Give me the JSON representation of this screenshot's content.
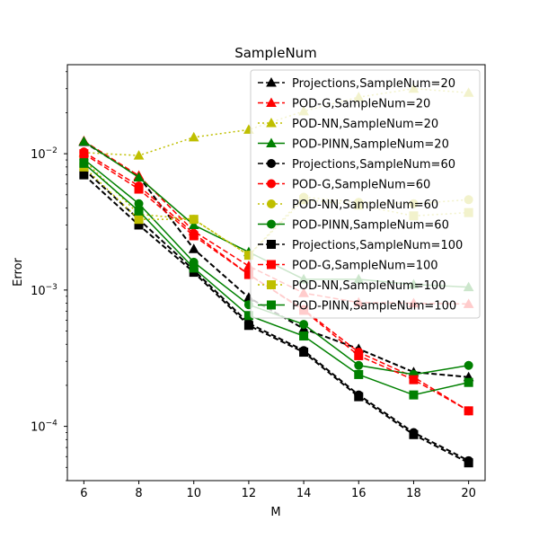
{
  "chart_data": {
    "type": "line",
    "title": "SampleNum",
    "xlabel": "M",
    "ylabel": "Error",
    "yscale": "log",
    "xlim": [
      5.4,
      20.6
    ],
    "ylim": [
      4e-05,
      0.045
    ],
    "x": [
      6,
      8,
      10,
      12,
      14,
      16,
      18,
      20
    ],
    "x_ticks": [
      6,
      8,
      10,
      12,
      14,
      16,
      18,
      20
    ],
    "y_ticks": [
      {
        "value": 0.0001,
        "base": "10",
        "exp": "−4"
      },
      {
        "value": 0.001,
        "base": "10",
        "exp": "−3"
      },
      {
        "value": 0.01,
        "base": "10",
        "exp": "−2"
      }
    ],
    "legend_position": "top-right",
    "grid": false,
    "series": [
      {
        "name": "Projections,SampleNum=20",
        "color": "#000000",
        "dash": "dashed",
        "marker": "triangle",
        "values": [
          0.0122,
          0.0068,
          0.002,
          0.00088,
          0.00052,
          0.00037,
          0.00025,
          0.00023
        ]
      },
      {
        "name": "POD-G,SampleNum=20",
        "color": "#ff0000",
        "dash": "dashed",
        "marker": "triangle",
        "values": [
          0.0124,
          0.0069,
          0.0027,
          0.0015,
          0.00095,
          0.00081,
          0.0008,
          0.00079
        ]
      },
      {
        "name": "POD-NN,SampleNum=20",
        "color": "#bfbf00",
        "dash": "dotted",
        "marker": "triangle",
        "values": [
          0.0102,
          0.0097,
          0.0132,
          0.015,
          0.0205,
          0.026,
          0.03,
          0.028
        ]
      },
      {
        "name": "POD-PINN,SampleNum=20",
        "color": "#008000",
        "dash": "solid",
        "marker": "triangle",
        "values": [
          0.0123,
          0.0067,
          0.003,
          0.0019,
          0.0012,
          0.0012,
          0.0011,
          0.00105
        ]
      },
      {
        "name": "Projections,SampleNum=60",
        "color": "#000000",
        "dash": "dashed",
        "marker": "circle",
        "values": [
          0.0077,
          0.0033,
          0.0014,
          0.00057,
          0.00036,
          0.00017,
          9e-05,
          5.6e-05
        ]
      },
      {
        "name": "POD-G,SampleNum=60",
        "color": "#ff0000",
        "dash": "dashed",
        "marker": "circle",
        "values": [
          0.0103,
          0.0058,
          0.0026,
          0.0013,
          0.00072,
          0.00035,
          0.00023,
          0.00013
        ]
      },
      {
        "name": "POD-NN,SampleNum=60",
        "color": "#bfbf00",
        "dash": "dotted",
        "marker": "circle",
        "values": [
          0.009,
          0.0036,
          0.0033,
          0.0018,
          0.0048,
          0.0044,
          0.0043,
          0.0046
        ]
      },
      {
        "name": "POD-PINN,SampleNum=60",
        "color": "#008000",
        "dash": "solid",
        "marker": "circle",
        "values": [
          0.0091,
          0.0043,
          0.0016,
          0.00078,
          0.00056,
          0.00028,
          0.00024,
          0.00028
        ]
      },
      {
        "name": "Projections,SampleNum=100",
        "color": "#000000",
        "dash": "dashed",
        "marker": "square",
        "values": [
          0.007,
          0.003,
          0.00135,
          0.00055,
          0.00035,
          0.000165,
          8.7e-05,
          5.4e-05
        ]
      },
      {
        "name": "POD-G,SampleNum=100",
        "color": "#ff0000",
        "dash": "dashed",
        "marker": "square",
        "values": [
          0.01,
          0.0055,
          0.0025,
          0.0013,
          0.00071,
          0.00033,
          0.00022,
          0.00013
        ]
      },
      {
        "name": "POD-NN,SampleNum=100",
        "color": "#bfbf00",
        "dash": "dotted",
        "marker": "square",
        "values": [
          0.008,
          0.0033,
          0.0033,
          0.0018,
          0.0046,
          0.0042,
          0.0035,
          0.0037
        ]
      },
      {
        "name": "POD-PINN,SampleNum=100",
        "color": "#008000",
        "dash": "solid",
        "marker": "square",
        "values": [
          0.0085,
          0.0038,
          0.00145,
          0.00065,
          0.00046,
          0.00024,
          0.00017,
          0.00021
        ]
      }
    ]
  }
}
